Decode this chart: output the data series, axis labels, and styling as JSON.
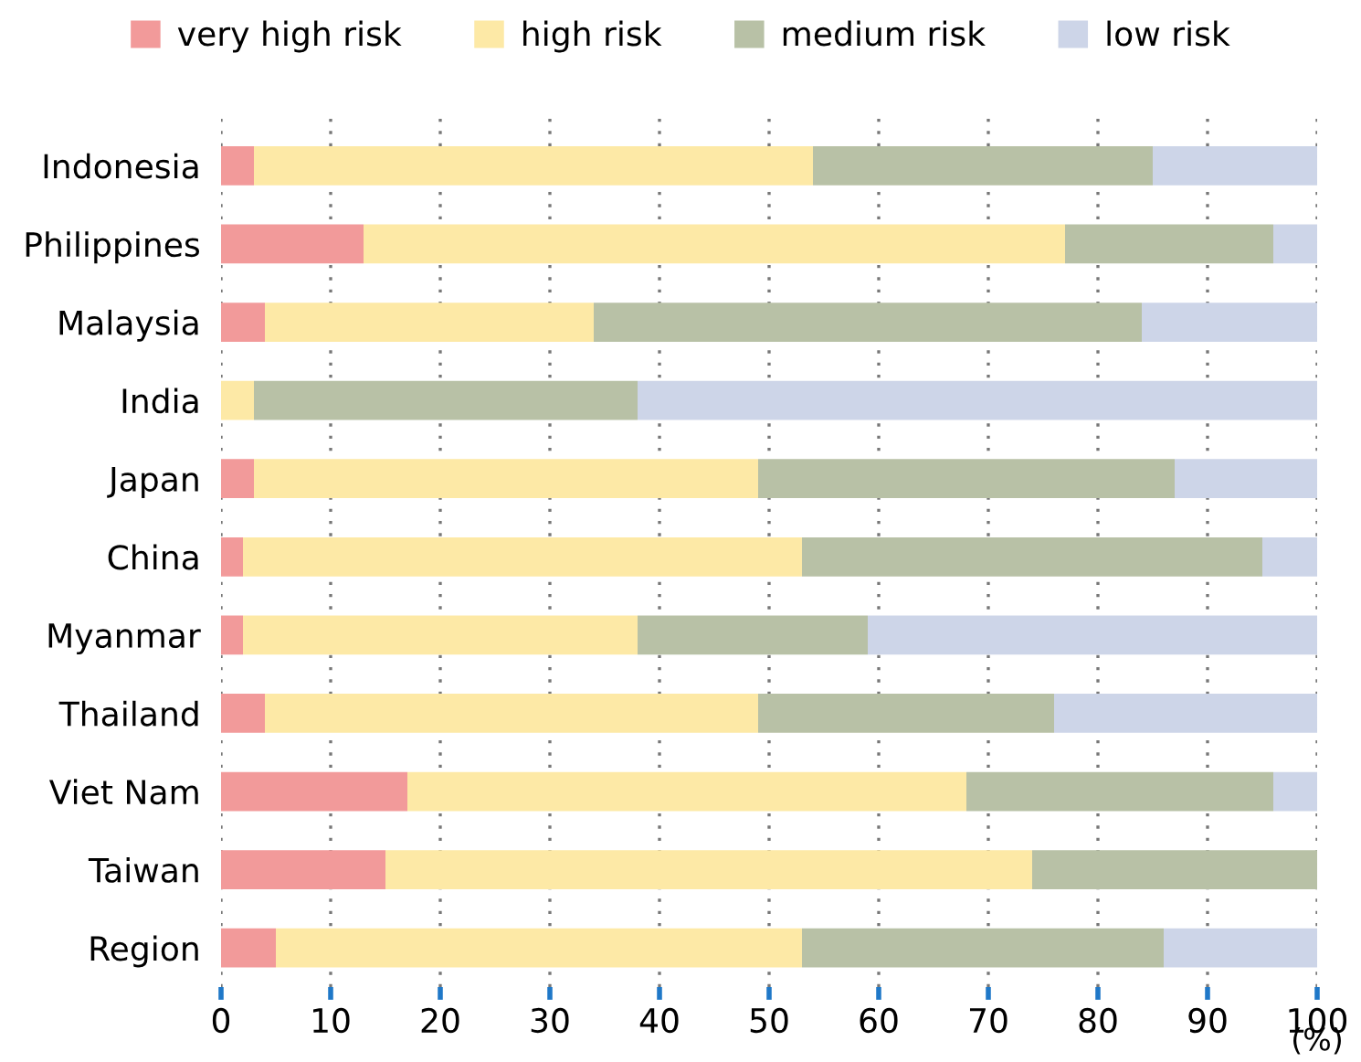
{
  "chart_data": {
    "type": "bar",
    "orientation": "horizontal",
    "stacked": true,
    "categories": [
      "Indonesia",
      "Philippines",
      "Malaysia",
      "India",
      "Japan",
      "China",
      "Myanmar",
      "Thailand",
      "Viet Nam",
      "Taiwan",
      "Region"
    ],
    "series": [
      {
        "name": "very high risk",
        "color": "#f29a9a",
        "values": [
          3,
          13,
          4,
          0,
          3,
          2,
          2,
          4,
          17,
          15,
          5
        ]
      },
      {
        "name": "high risk",
        "color": "#fde9a6",
        "values": [
          51,
          64,
          30,
          3,
          46,
          51,
          36,
          45,
          51,
          59,
          48
        ]
      },
      {
        "name": "medium risk",
        "color": "#b8c1a6",
        "values": [
          31,
          19,
          50,
          35,
          38,
          42,
          21,
          27,
          28,
          26,
          33
        ]
      },
      {
        "name": "low risk",
        "color": "#cdd5e8",
        "values": [
          15,
          4,
          16,
          62,
          13,
          5,
          41,
          24,
          4,
          0,
          14
        ]
      }
    ],
    "xlim": [
      0,
      100
    ],
    "xticks": [
      0,
      10,
      20,
      30,
      40,
      50,
      60,
      70,
      80,
      90,
      100
    ],
    "xlabel": "(%)",
    "grid": "x",
    "legend": "top"
  }
}
